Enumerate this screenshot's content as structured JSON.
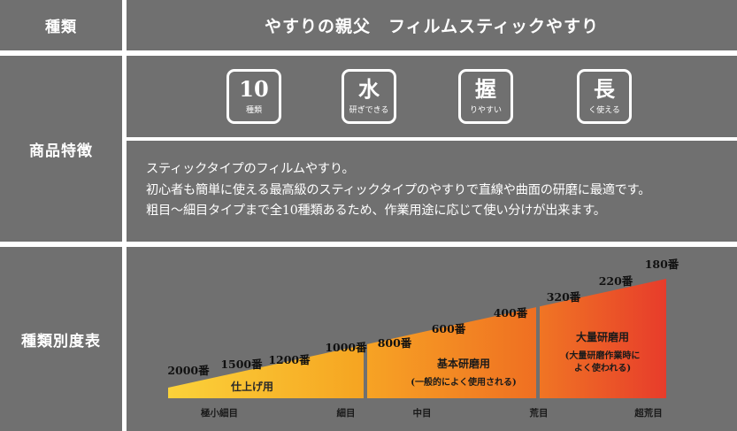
{
  "rows": {
    "type_label": "種類",
    "features_label": "商品特徴",
    "grade_label": "種類別度表"
  },
  "title": "やすりの親父　フィルムスティックやすり",
  "badges": [
    {
      "big": "10",
      "small": "種類"
    },
    {
      "big": "水",
      "small": "研ぎできる"
    },
    {
      "big": "握",
      "small": "りやすい"
    },
    {
      "big": "長",
      "small": "く使える"
    }
  ],
  "description": [
    "スティックタイプのフィルムやすり。",
    "初心者も簡単に使える最高級のスティックタイプのやすりで直線や曲面の研磨に最適です。",
    "粗目〜細目タイプまで全10種類あるため、作業用途に応じて使い分けが出来ます。"
  ],
  "chart_data": {
    "type": "area",
    "grits": [
      "2000番",
      "1500番",
      "1200番",
      "1000番",
      "800番",
      "600番",
      "400番",
      "320番",
      "220番",
      "180番"
    ],
    "scale": [
      "極小細目",
      "細目",
      "中目",
      "荒目",
      "超荒目"
    ],
    "sections": [
      {
        "title": "仕上げ用",
        "note": ""
      },
      {
        "title": "基本研磨用",
        "note": "(一般的によく使用される)"
      },
      {
        "title": "大量研磨用",
        "note": "(大量研磨作業時に\nよく使われる)"
      }
    ],
    "colors": {
      "start": "#f8c12a",
      "mid": "#f07d22",
      "end": "#e8432c"
    }
  }
}
